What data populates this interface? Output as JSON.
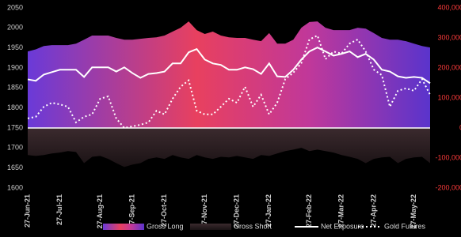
{
  "chart_data": {
    "type": "combo",
    "categories": [
      "27-Jun-21",
      null,
      null,
      null,
      "27-Jul-21",
      null,
      null,
      null,
      null,
      "27-Aug-21",
      null,
      null,
      null,
      "27-Sep-21",
      null,
      null,
      null,
      "27-Oct-21",
      null,
      null,
      null,
      null,
      "27-Nov-21",
      null,
      null,
      null,
      "27-Dec-21",
      null,
      null,
      null,
      "27-Jan-22",
      null,
      null,
      null,
      null,
      "27-Feb-22",
      null,
      null,
      null,
      "27-Mar-22",
      null,
      null,
      null,
      "27-Apr-22",
      null,
      null,
      null,
      null,
      "27-May-22",
      null,
      null
    ],
    "series": [
      {
        "name": "Gross Long",
        "kind": "area",
        "axis": "y2",
        "color": "#e8405f",
        "values": [
          255000,
          262000,
          273000,
          276000,
          276000,
          276000,
          281000,
          294000,
          308000,
          308000,
          308000,
          300000,
          294000,
          294000,
          297000,
          300000,
          302000,
          308000,
          321000,
          334000,
          355000,
          326000,
          313000,
          321000,
          308000,
          302000,
          300000,
          300000,
          294000,
          289000,
          316000,
          281000,
          281000,
          294000,
          334000,
          353000,
          355000,
          334000,
          326000,
          326000,
          326000,
          334000,
          331000,
          316000,
          300000,
          294000,
          294000,
          289000,
          281000,
          273000,
          268000
        ]
      },
      {
        "name": "Gross Short",
        "kind": "area",
        "axis": "y2",
        "color": "#3b2a2e",
        "values": [
          -90000,
          -93000,
          -90000,
          -85000,
          -82000,
          -77000,
          -80000,
          -117000,
          -96000,
          -93000,
          -103000,
          -117000,
          -130000,
          -122000,
          -117000,
          -103000,
          -98000,
          -103000,
          -90000,
          -98000,
          -103000,
          -90000,
          -98000,
          -103000,
          -96000,
          -98000,
          -93000,
          -98000,
          -103000,
          -90000,
          -93000,
          -85000,
          -77000,
          -72000,
          -66000,
          -77000,
          -72000,
          -77000,
          -82000,
          -90000,
          -96000,
          -103000,
          -117000,
          -103000,
          -98000,
          -96000,
          -117000,
          -103000,
          -98000,
          -96000,
          -117000
        ]
      },
      {
        "name": "Net Exposure",
        "kind": "line",
        "axis": "y2",
        "color": "#ffffff",
        "values": [
          162000,
          157000,
          178000,
          186000,
          194000,
          194000,
          194000,
          170000,
          202000,
          202000,
          202000,
          188000,
          202000,
          183000,
          167000,
          180000,
          183000,
          188000,
          215000,
          215000,
          252000,
          263000,
          228000,
          215000,
          210000,
          194000,
          194000,
          202000,
          196000,
          180000,
          215000,
          172000,
          170000,
          194000,
          228000,
          255000,
          268000,
          255000,
          241000,
          247000,
          255000,
          236000,
          247000,
          228000,
          194000,
          188000,
          172000,
          167000,
          170000,
          167000,
          149000
        ]
      },
      {
        "name": "Gold Futures",
        "kind": "dotted",
        "axis": "y",
        "color": "#ffffff",
        "values": [
          1774,
          1778,
          1803,
          1813,
          1809,
          1803,
          1764,
          1778,
          1784,
          1823,
          1829,
          1774,
          1750,
          1754,
          1758,
          1764,
          1793,
          1784,
          1823,
          1853,
          1869,
          1793,
          1784,
          1784,
          1803,
          1823,
          1813,
          1853,
          1803,
          1833,
          1784,
          1813,
          1872,
          1888,
          1912,
          1971,
          1981,
          1922,
          1941,
          1936,
          1961,
          1971,
          1941,
          1896,
          1882,
          1803,
          1843,
          1849,
          1843,
          1872,
          1833
        ]
      }
    ],
    "ylim": [
      1600,
      2050
    ],
    "yticks": [
      1600,
      1650,
      1700,
      1750,
      1800,
      1850,
      1900,
      1950,
      2000,
      2050
    ],
    "y2lim": [
      -200000,
      400000
    ],
    "y2ticks": [
      {
        "value": -200000,
        "label": "-200,000"
      },
      {
        "value": -100000,
        "label": "-100,000"
      },
      0,
      {
        "value": 100000,
        "label": "100,000"
      },
      {
        "value": 200000,
        "label": "200,000"
      },
      {
        "value": 300000,
        "label": "300,000"
      },
      {
        "value": 400000,
        "label": "400,000"
      }
    ],
    "y2_color": "#ff3b3b"
  }
}
